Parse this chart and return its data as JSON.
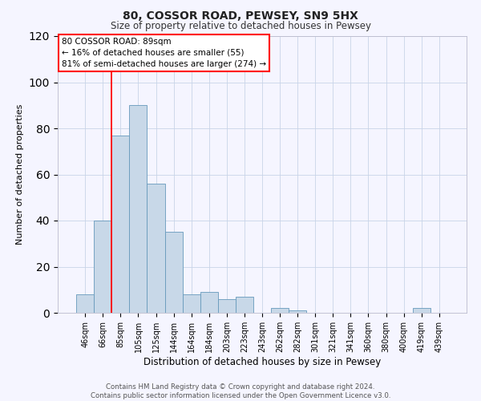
{
  "title": "80, COSSOR ROAD, PEWSEY, SN9 5HX",
  "subtitle": "Size of property relative to detached houses in Pewsey",
  "xlabel": "Distribution of detached houses by size in Pewsey",
  "ylabel": "Number of detached properties",
  "bar_labels": [
    "46sqm",
    "66sqm",
    "85sqm",
    "105sqm",
    "125sqm",
    "144sqm",
    "164sqm",
    "184sqm",
    "203sqm",
    "223sqm",
    "243sqm",
    "262sqm",
    "282sqm",
    "301sqm",
    "321sqm",
    "341sqm",
    "360sqm",
    "380sqm",
    "400sqm",
    "419sqm",
    "439sqm"
  ],
  "bar_values": [
    8,
    40,
    77,
    90,
    56,
    35,
    8,
    9,
    6,
    7,
    0,
    2,
    1,
    0,
    0,
    0,
    0,
    0,
    0,
    2,
    0
  ],
  "bar_color": "#c8d8e8",
  "bar_edge_color": "#6699bb",
  "ylim": [
    0,
    120
  ],
  "yticks": [
    0,
    20,
    40,
    60,
    80,
    100,
    120
  ],
  "red_line_index": 2,
  "annotation_line1": "80 COSSOR ROAD: 89sqm",
  "annotation_line2": "← 16% of detached houses are smaller (55)",
  "annotation_line3": "81% of semi-detached houses are larger (274) →",
  "footer_line1": "Contains HM Land Registry data © Crown copyright and database right 2024.",
  "footer_line2": "Contains public sector information licensed under the Open Government Licence v3.0.",
  "background_color": "#f5f5ff",
  "grid_color": "#c8d4e8",
  "title_fontsize": 10,
  "subtitle_fontsize": 8.5,
  "ylabel_fontsize": 8,
  "xlabel_fontsize": 8.5,
  "tick_fontsize": 7,
  "footer_fontsize": 6.2
}
